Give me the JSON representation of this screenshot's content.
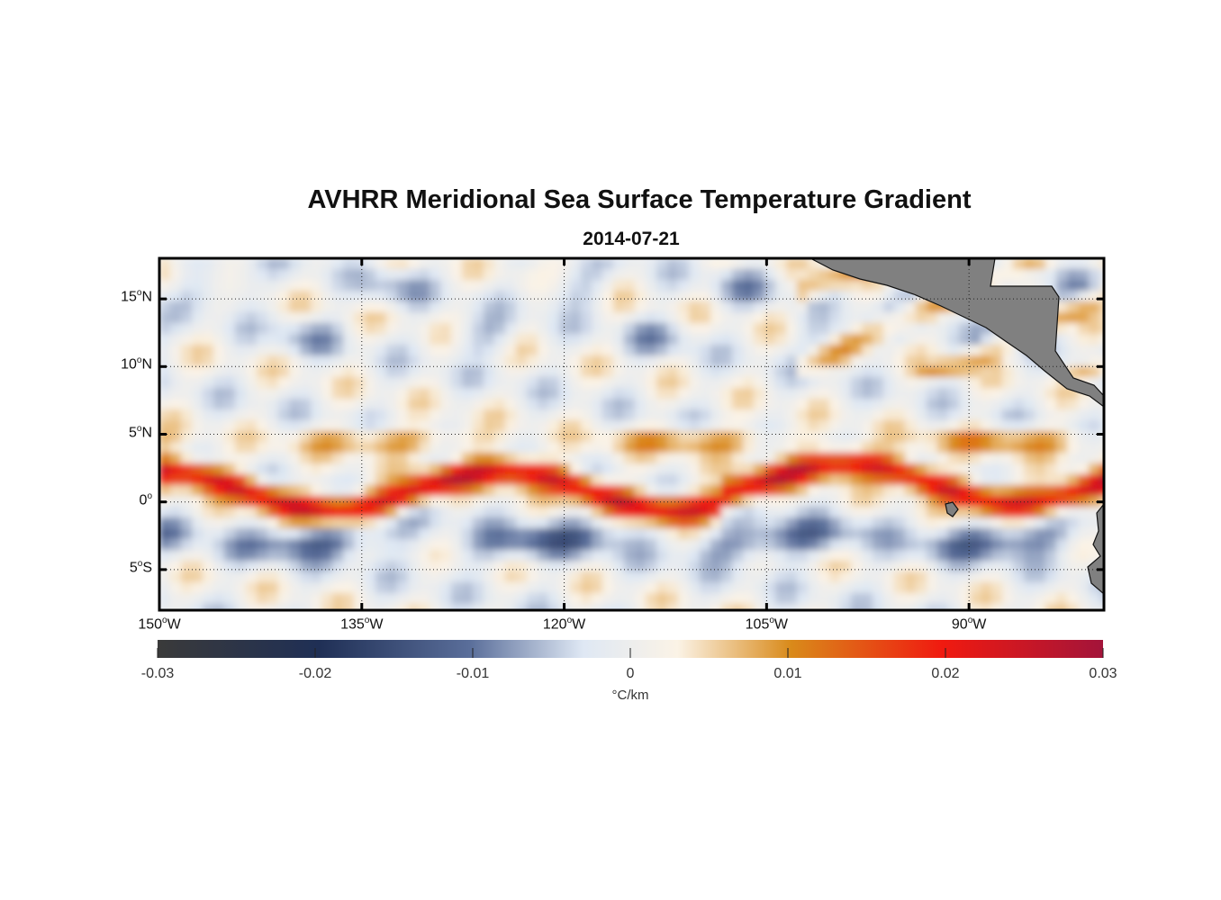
{
  "title": "AVHRR Meridional Sea Surface Temperature Gradient",
  "subtitle": "2014-07-21",
  "map": {
    "lon_range": [
      -150,
      -80
    ],
    "lat_range": [
      -8,
      18
    ],
    "lat_ticks": [
      {
        "lat": 15,
        "deg": "15",
        "hem": "N"
      },
      {
        "lat": 10,
        "deg": "10",
        "hem": "N"
      },
      {
        "lat": 5,
        "deg": "5",
        "hem": "N"
      },
      {
        "lat": 0,
        "deg": "0",
        "hem": ""
      },
      {
        "lat": -5,
        "deg": "5",
        "hem": "S"
      }
    ],
    "lon_ticks": [
      {
        "lon": -150,
        "deg": "150",
        "hem": "W"
      },
      {
        "lon": -135,
        "deg": "135",
        "hem": "W"
      },
      {
        "lon": -120,
        "deg": "120",
        "hem": "W"
      },
      {
        "lon": -105,
        "deg": "105",
        "hem": "W"
      },
      {
        "lon": -90,
        "deg": "90",
        "hem": "W"
      }
    ],
    "land_color": "#808080"
  },
  "colorbar": {
    "min": -0.03,
    "max": 0.03,
    "tick_values": [
      -0.03,
      -0.02,
      -0.01,
      0,
      0.01,
      0.02,
      0.03
    ],
    "tick_labels": [
      "-0.03",
      "-0.02",
      "-0.01",
      "0",
      "0.01",
      "0.02",
      "0.03"
    ],
    "units": "°C/km",
    "stops": [
      "#3a3a3a",
      "#1f2f55",
      "#5a6e9a",
      "#dfe8f4",
      "#fbf3e6",
      "#d98a1a",
      "#f01a10",
      "#a3143a"
    ]
  }
}
